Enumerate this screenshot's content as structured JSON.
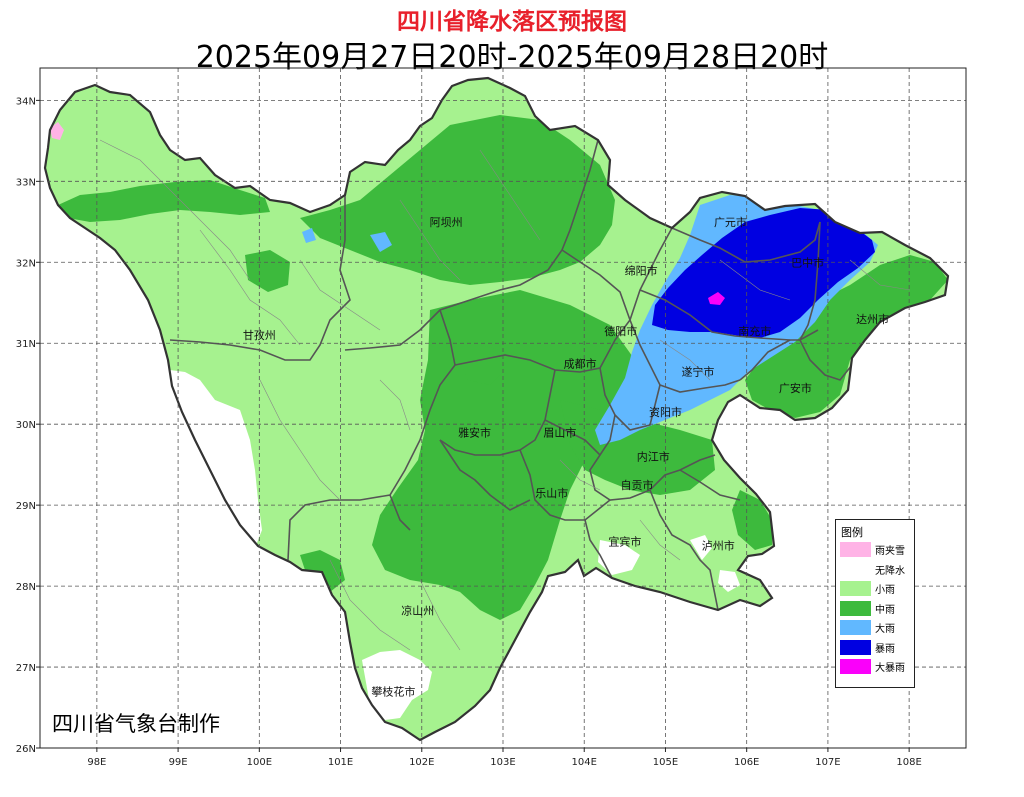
{
  "title": "四川省降水落区预报图",
  "subtitle": "2025年09月27日20时-2025年09月28日20时",
  "credit": "四川省气象台制作",
  "colors": {
    "title": "#e8202b",
    "rain_snow": "#ffb3e6",
    "no_rain": "#ffffff",
    "light_rain": "#a6f28f",
    "moderate_rain": "#3dba3d",
    "heavy_rain": "#61b8ff",
    "rainstorm": "#0000e1",
    "heavy_rainstorm": "#fa00fa"
  },
  "latitude_labels": [
    "34N",
    "33N",
    "32N",
    "31N",
    "30N",
    "29N",
    "28N",
    "27N",
    "26N"
  ],
  "longitude_labels": [
    "98E",
    "99E",
    "100E",
    "101E",
    "102E",
    "103E",
    "104E",
    "105E",
    "106E",
    "107E",
    "108E"
  ],
  "cities": [
    {
      "name": "阿坝州",
      "lon": 102.3,
      "lat": 32.45
    },
    {
      "name": "甘孜州",
      "lon": 100.0,
      "lat": 31.05
    },
    {
      "name": "绵阳市",
      "lon": 104.7,
      "lat": 31.85
    },
    {
      "name": "广元市",
      "lon": 105.8,
      "lat": 32.45
    },
    {
      "name": "巴中市",
      "lon": 106.75,
      "lat": 31.95
    },
    {
      "name": "达州市",
      "lon": 107.55,
      "lat": 31.25
    },
    {
      "name": "德阳市",
      "lon": 104.45,
      "lat": 31.1
    },
    {
      "name": "南充市",
      "lon": 106.1,
      "lat": 31.1
    },
    {
      "name": "成都市",
      "lon": 103.95,
      "lat": 30.7
    },
    {
      "name": "遂宁市",
      "lon": 105.4,
      "lat": 30.6
    },
    {
      "name": "广安市",
      "lon": 106.6,
      "lat": 30.4
    },
    {
      "name": "资阳市",
      "lon": 105.0,
      "lat": 30.1
    },
    {
      "name": "雅安市",
      "lon": 102.65,
      "lat": 29.85
    },
    {
      "name": "眉山市",
      "lon": 103.7,
      "lat": 29.85
    },
    {
      "name": "内江市",
      "lon": 104.85,
      "lat": 29.55
    },
    {
      "name": "自贡市",
      "lon": 104.65,
      "lat": 29.2
    },
    {
      "name": "乐山市",
      "lon": 103.6,
      "lat": 29.1
    },
    {
      "name": "宜宾市",
      "lon": 104.5,
      "lat": 28.5
    },
    {
      "name": "泸州市",
      "lon": 105.65,
      "lat": 28.45
    },
    {
      "name": "凉山州",
      "lon": 101.95,
      "lat": 27.65
    },
    {
      "name": "攀枝花市",
      "lon": 101.65,
      "lat": 26.65
    }
  ],
  "legend": {
    "title": "图例",
    "items": [
      {
        "label": "雨夹雪",
        "color": "#ffb3e6"
      },
      {
        "label": "无降水",
        "color": "#ffffff"
      },
      {
        "label": "小雨",
        "color": "#a6f28f"
      },
      {
        "label": "中雨",
        "color": "#3dba3d"
      },
      {
        "label": "大雨",
        "color": "#61b8ff"
      },
      {
        "label": "暴雨",
        "color": "#0000e1"
      },
      {
        "label": "大暴雨",
        "color": "#fa00fa"
      }
    ]
  }
}
